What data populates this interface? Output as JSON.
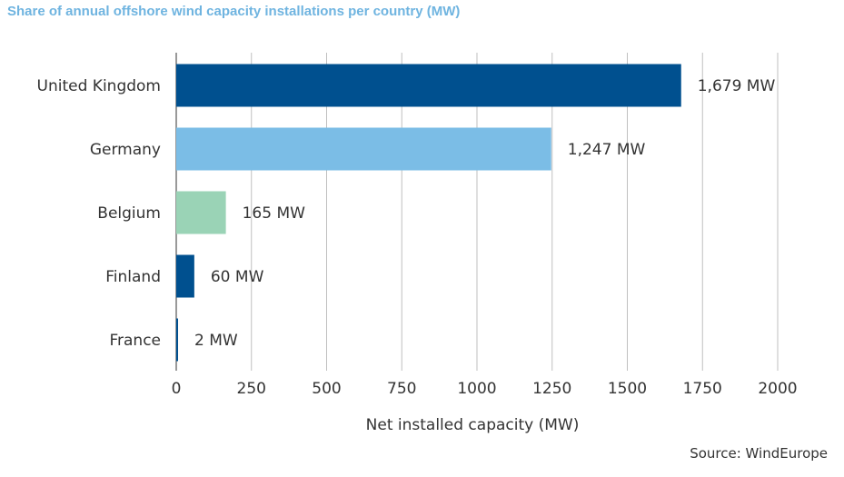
{
  "chart_data": {
    "type": "bar",
    "orientation": "horizontal",
    "title": "Share of annual offshore wind capacity installations per country (MW)",
    "xlabel": "Net installed capacity (MW)",
    "ylabel": "",
    "categories": [
      "United Kingdom",
      "Germany",
      "Belgium",
      "Finland",
      "France"
    ],
    "values": [
      1679,
      1247,
      165,
      60,
      2
    ],
    "data_labels": [
      "1,679 MW",
      "1,247 MW",
      "165 MW",
      "60 MW",
      "2 MW"
    ],
    "colors": [
      "#00508f",
      "#7bbde6",
      "#9ad3b6",
      "#00508f",
      "#00508f"
    ],
    "xlim": [
      0,
      2000
    ],
    "xticks": [
      0,
      250,
      500,
      750,
      1000,
      1250,
      1500,
      1750,
      2000
    ],
    "grid": "vertical",
    "legend": "none"
  },
  "source": "Source: WindEurope"
}
